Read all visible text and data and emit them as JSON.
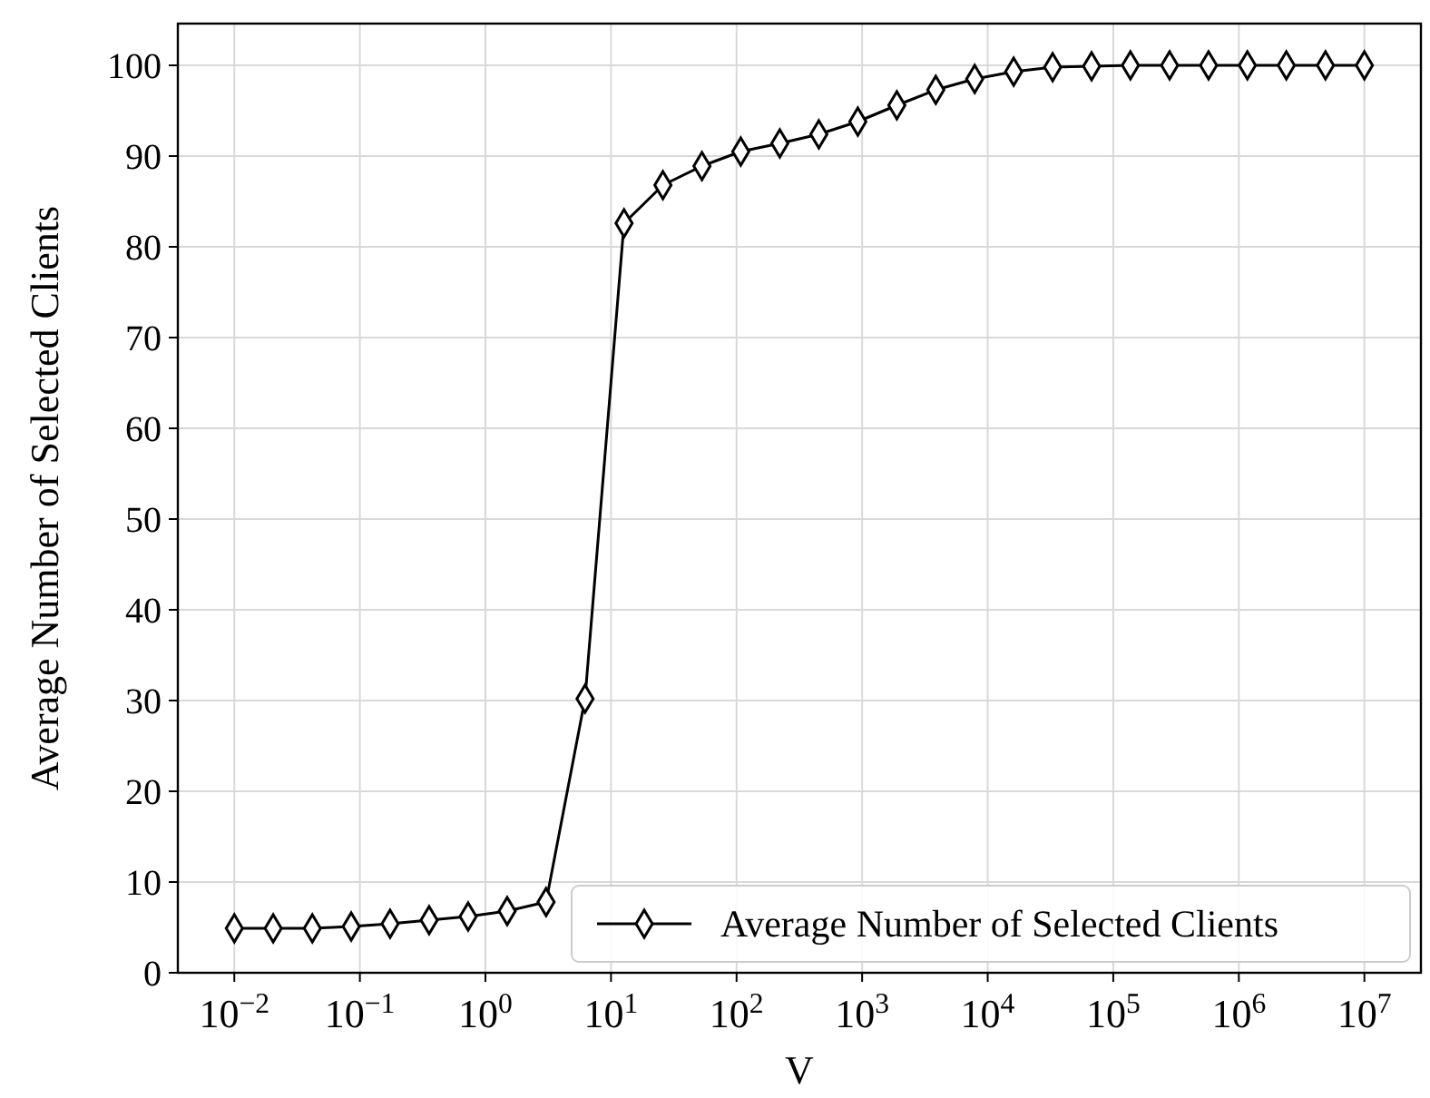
{
  "chart_data": {
    "type": "line",
    "xlabel": "V",
    "ylabel": "Average Number of Selected Clients",
    "log": "x",
    "grid": true,
    "legend": "bottom right",
    "marker": "diamond",
    "line_style": "solid",
    "x": [
      0.01,
      0.0204,
      0.0418,
      0.0853,
      0.174,
      0.356,
      0.728,
      1.49,
      3.04,
      6.21,
      12.7,
      25.9,
      53.0,
      108,
      221,
      452,
      924,
      1890,
      3860,
      7880,
      16100,
      32900,
      67200,
      137000,
      281000,
      574000,
      1170000,
      2390000,
      4900000,
      10000000
    ],
    "series": [
      {
        "name": "Average Number of Selected Clients",
        "color": "#000000",
        "values": [
          4.9,
          4.9,
          4.9,
          5.1,
          5.4,
          5.8,
          6.2,
          6.8,
          7.8,
          30.2,
          82.6,
          86.8,
          88.9,
          90.5,
          91.4,
          92.4,
          93.8,
          95.6,
          97.3,
          98.5,
          99.3,
          99.8,
          99.9,
          100,
          100,
          100,
          100,
          100,
          100,
          100
        ]
      }
    ],
    "xlim": [
      0.00355,
      28200000
    ],
    "ylim": [
      0,
      104.6
    ],
    "xticks": [
      {
        "value": 0.01,
        "label": "10$^{−2}$"
      },
      {
        "value": 0.1,
        "label": "10$^{−1}$"
      },
      {
        "value": 1,
        "label": "10$^{0}$"
      },
      {
        "value": 10,
        "label": "10$^{1}$"
      },
      {
        "value": 100,
        "label": "10$^{2}$"
      },
      {
        "value": 1000,
        "label": "10$^{3}$"
      },
      {
        "value": 10000,
        "label": "10$^{4}$"
      },
      {
        "value": 100000,
        "label": "10$^{5}$"
      },
      {
        "value": 1000000,
        "label": "10$^{6}$"
      },
      {
        "value": 10000000,
        "label": "10$^{7}$"
      }
    ],
    "yticks": [
      0,
      10,
      20,
      30,
      40,
      50,
      60,
      70,
      80,
      90,
      100
    ]
  }
}
